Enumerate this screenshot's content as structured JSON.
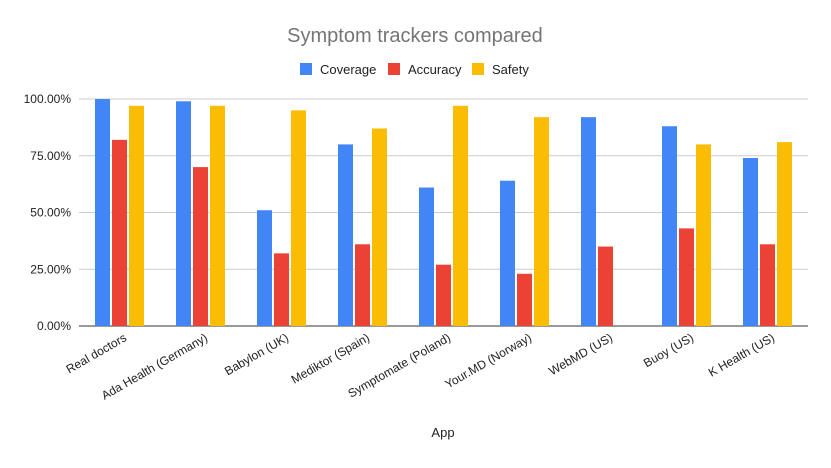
{
  "chart_data": {
    "type": "bar",
    "title": "Symptom trackers compared",
    "xlabel": "App",
    "ylabel": "",
    "ylim": [
      0,
      1
    ],
    "yticks": [
      "0.00%",
      "25.00%",
      "50.00%",
      "75.00%",
      "100.00%"
    ],
    "grid": true,
    "legend_position": "top",
    "categories": [
      "Real doctors",
      "Ada Health (Germany)",
      "Babylon (UK)",
      "Mediktor (Spain)",
      "Symptomate (Poland)",
      "Your.MD (Norway)",
      "WebMD (US)",
      "Buoy (US)",
      "K Health (US)"
    ],
    "series": [
      {
        "name": "Coverage",
        "color": "#4285f4",
        "values": [
          1.0,
          0.99,
          0.51,
          0.8,
          0.61,
          0.64,
          0.92,
          0.88,
          0.74
        ]
      },
      {
        "name": "Accuracy",
        "color": "#ea4335",
        "values": [
          0.82,
          0.7,
          0.32,
          0.36,
          0.27,
          0.23,
          0.35,
          0.43,
          0.36
        ]
      },
      {
        "name": "Safety",
        "color": "#fbbc04",
        "values": [
          0.97,
          0.97,
          0.95,
          0.87,
          0.97,
          0.92,
          null,
          0.8,
          0.81
        ]
      }
    ]
  }
}
